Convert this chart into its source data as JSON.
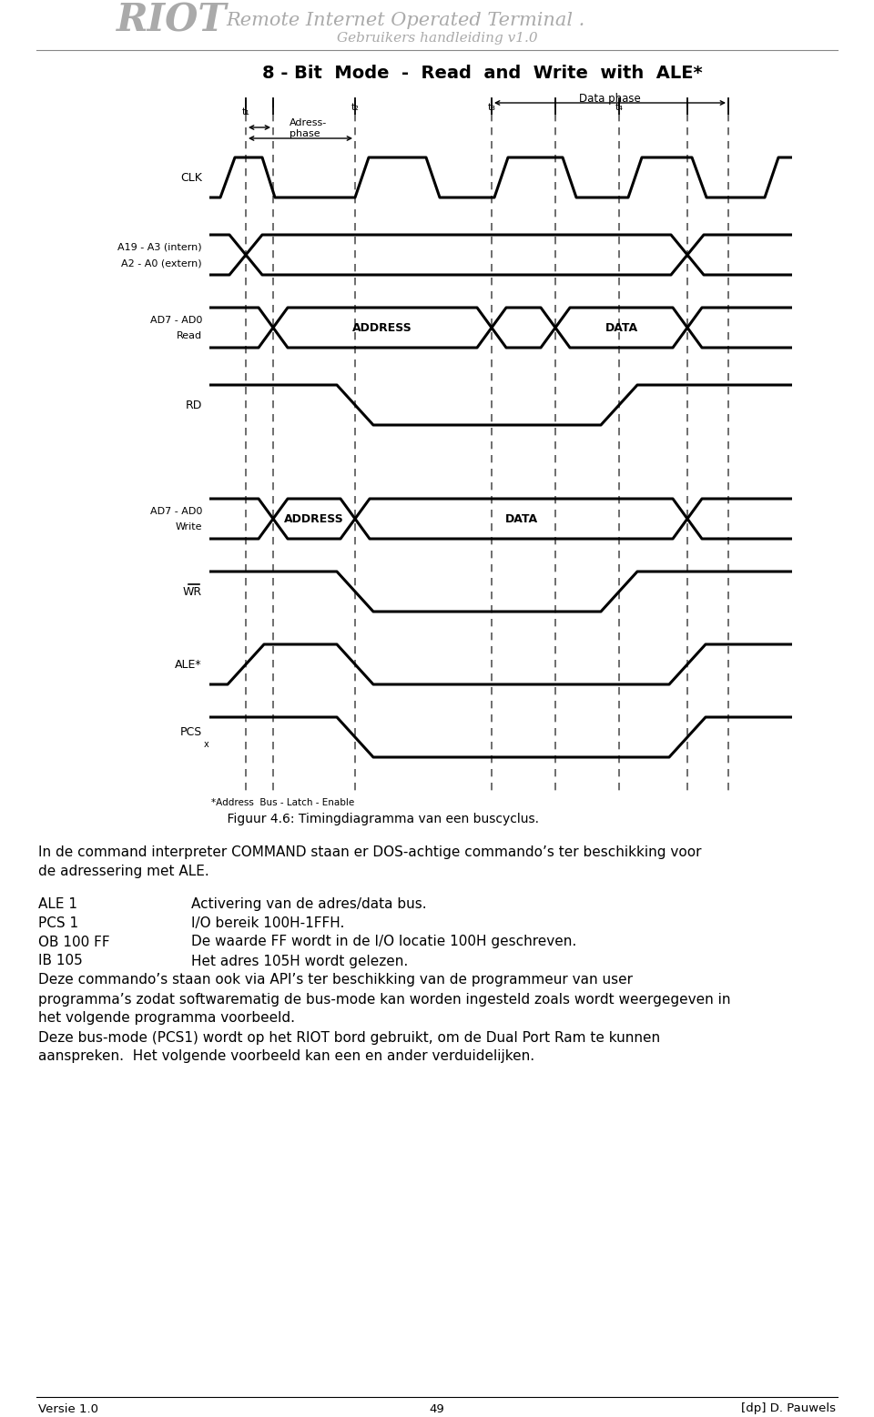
{
  "title_riot": "RIOT",
  "title_main": "Remote Internet Operated Terminal .",
  "title_sub": "Gebruikers handleiding v1.0",
  "diagram_title": "8 - Bit  Mode  -  Read  and  Write  with  ALE*",
  "footer_left": "Versie 1.0",
  "footer_center": "49",
  "footer_right": "[dp] D. Pauwels",
  "fig_caption": "    Figuur 4.6: Timingdiagramma van een buscyclus.",
  "ale_note": "*Address  Bus - Latch - Enable",
  "bg_color": "#ffffff",
  "line_color": "#000000"
}
